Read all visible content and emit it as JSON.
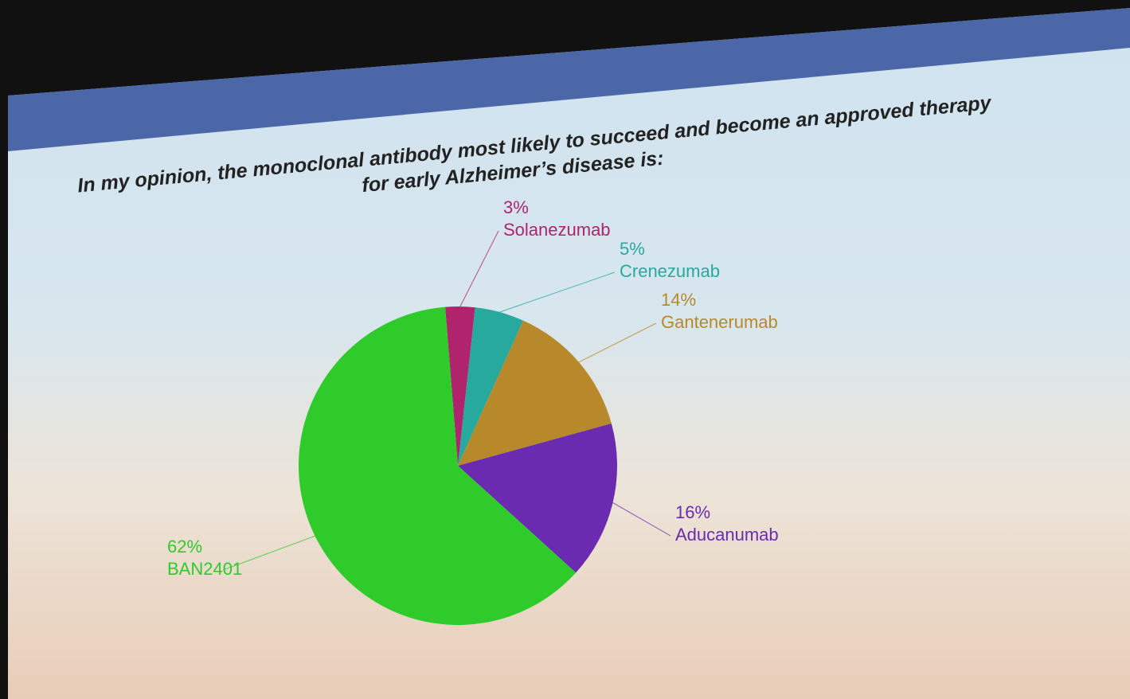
{
  "chart_data": {
    "type": "pie",
    "title": [
      "In my opinion, the monoclonal antibody most likely to succeed and become an approved therapy",
      "for early Alzheimer’s disease is:"
    ],
    "categories": [
      "Solanezumab",
      "Crenezumab",
      "Gantenerumab",
      "Aducanumab",
      "BAN2401"
    ],
    "values": [
      3,
      5,
      14,
      16,
      62
    ],
    "value_labels": [
      "3%",
      "5%",
      "14%",
      "16%",
      "62%"
    ],
    "colors": [
      "#b0246e",
      "#27a99e",
      "#b8892a",
      "#6a2bb0",
      "#2fcb2a"
    ]
  }
}
